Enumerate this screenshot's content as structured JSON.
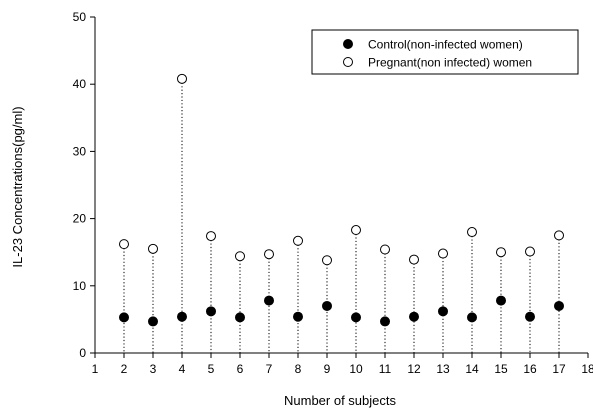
{
  "chart_data": {
    "type": "scatter",
    "title": "",
    "xlabel": "Number of subjects",
    "ylabel": "IL-23 Concentrations(pg/ml)",
    "xlim": [
      1,
      18
    ],
    "ylim": [
      0,
      50
    ],
    "xticks": [
      "1",
      "2",
      "3",
      "4",
      "5",
      "6",
      "7",
      "8",
      "9",
      "10",
      "11",
      "12",
      "13",
      "14",
      "15",
      "16",
      "17",
      "18"
    ],
    "yticks": [
      "0",
      "10",
      "20",
      "30",
      "40",
      "50"
    ],
    "grid": false,
    "legend_position": "top-right",
    "x": [
      2,
      3,
      4,
      5,
      6,
      7,
      8,
      9,
      10,
      11,
      12,
      13,
      14,
      15,
      16,
      17
    ],
    "series": [
      {
        "name": "Control(non-infected women)",
        "marker": "filled-circle",
        "color": "#000000",
        "values": [
          5.3,
          4.7,
          5.4,
          6.2,
          5.3,
          7.8,
          5.4,
          7.0,
          5.3,
          4.7,
          5.4,
          6.2,
          5.3,
          7.8,
          5.4,
          7.0
        ]
      },
      {
        "name": "Pregnant(non infected) women",
        "marker": "open-circle",
        "color": "#000000",
        "values": [
          16.2,
          15.5,
          40.8,
          17.4,
          14.4,
          14.7,
          16.7,
          13.8,
          18.3,
          15.4,
          13.9,
          14.8,
          18.0,
          15.0,
          15.1,
          17.5
        ]
      }
    ]
  }
}
